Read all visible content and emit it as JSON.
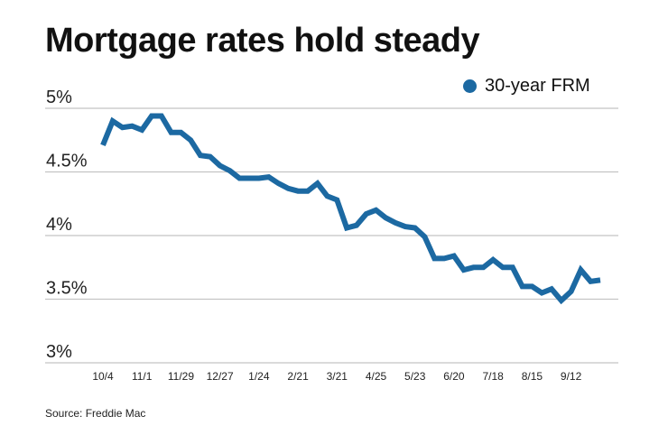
{
  "chart_data": {
    "type": "line",
    "title": "Mortgage rates hold steady",
    "source": "Source: Freddie Mac",
    "xlabel": "",
    "ylabel": "",
    "ylim": [
      3,
      5
    ],
    "y_ticks": [
      5,
      4.5,
      4,
      3.5,
      3
    ],
    "y_tick_labels": [
      "5%",
      "4.5%",
      "4%",
      "3.5%",
      "3%"
    ],
    "x_tick_labels": [
      "10/4",
      "11/1",
      "11/29",
      "12/27",
      "1/24",
      "2/21",
      "3/21",
      "4/25",
      "5/23",
      "6/20",
      "7/18",
      "8/15",
      "9/12"
    ],
    "x_tick_every": 4,
    "grid": "horizontal",
    "legend_position": "top-right",
    "series": [
      {
        "name": "30-year FRM",
        "color": "#1c69a2",
        "values": [
          4.71,
          4.9,
          4.85,
          4.86,
          4.83,
          4.94,
          4.94,
          4.81,
          4.81,
          4.75,
          4.63,
          4.62,
          4.55,
          4.51,
          4.45,
          4.45,
          4.45,
          4.46,
          4.41,
          4.37,
          4.35,
          4.35,
          4.41,
          4.31,
          4.28,
          4.06,
          4.08,
          4.17,
          4.2,
          4.14,
          4.1,
          4.07,
          4.06,
          3.99,
          3.82,
          3.82,
          3.84,
          3.73,
          3.75,
          3.75,
          3.81,
          3.75,
          3.75,
          3.6,
          3.6,
          3.55,
          3.58,
          3.49,
          3.56,
          3.73,
          3.64,
          3.65
        ]
      }
    ]
  }
}
